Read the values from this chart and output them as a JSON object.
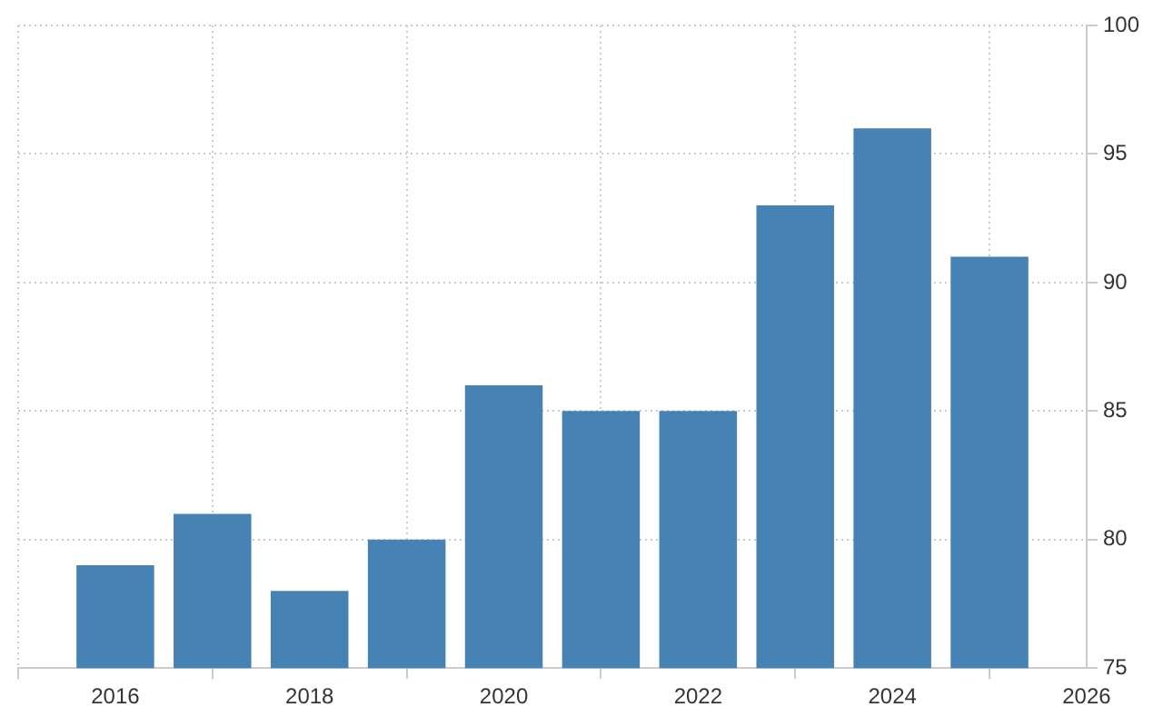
{
  "chart_data": {
    "type": "bar",
    "x": [
      2016,
      2017,
      2018,
      2019,
      2020,
      2021,
      2022,
      2023,
      2024,
      2025
    ],
    "values": [
      79,
      81,
      78,
      80,
      86,
      85,
      85,
      93,
      96,
      91
    ],
    "color": "#4682b4",
    "xlim": [
      2015,
      2026
    ],
    "xticks": [
      2016,
      2018,
      2020,
      2022,
      2024,
      2026
    ],
    "ylim": [
      75,
      100
    ],
    "yticks": [
      75,
      80,
      85,
      90,
      95,
      100
    ],
    "grid": true
  }
}
